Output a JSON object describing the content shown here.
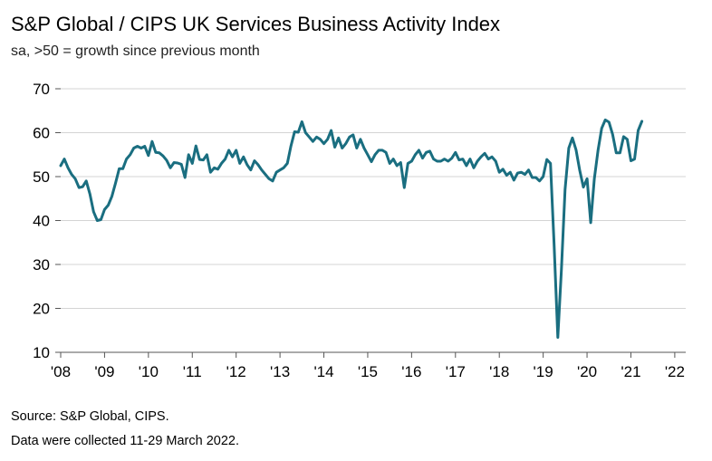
{
  "title": "S&P Global / CIPS UK Services Business Activity Index",
  "subtitle": "sa, >50 = growth since previous month",
  "source": "Source: S&P Global, CIPS.",
  "note": "Data were collected 11-29 March 2022.",
  "colors": {
    "line": "#1a6e80",
    "grid": "#d4d4d4",
    "axis": "#555555"
  },
  "chart_data": {
    "type": "line",
    "title": "S&P Global / CIPS UK Services Business Activity Index",
    "xlabel": "",
    "ylabel": "",
    "ylim": [
      10,
      70
    ],
    "xlim": [
      2008.0,
      2022.25
    ],
    "grid": true,
    "yticks": [
      10,
      20,
      30,
      40,
      50,
      60,
      70
    ],
    "xticks": [
      {
        "label": "'08",
        "x": 2008.0
      },
      {
        "label": "'09",
        "x": 2009.0
      },
      {
        "label": "'10",
        "x": 2010.0
      },
      {
        "label": "'11",
        "x": 2011.0
      },
      {
        "label": "'12",
        "x": 2012.0
      },
      {
        "label": "'13",
        "x": 2013.0
      },
      {
        "label": "'14",
        "x": 2014.0
      },
      {
        "label": "'15",
        "x": 2015.0
      },
      {
        "label": "'16",
        "x": 2016.0
      },
      {
        "label": "'17",
        "x": 2017.0
      },
      {
        "label": "'18",
        "x": 2018.0
      },
      {
        "label": "'19",
        "x": 2019.0
      },
      {
        "label": "'20",
        "x": 2020.0
      },
      {
        "label": "'21",
        "x": 2021.0
      },
      {
        "label": "'22",
        "x": 2022.0
      }
    ],
    "series": [
      {
        "name": "UK Services Business Activity Index",
        "start": 2008.0,
        "step": 0.083333,
        "values": [
          52.5,
          54.0,
          52.0,
          50.5,
          49.5,
          47.5,
          47.7,
          49.0,
          46.0,
          42.0,
          40.0,
          40.2,
          42.5,
          43.5,
          45.5,
          48.5,
          51.8,
          51.8,
          54.0,
          55.0,
          56.5,
          56.9,
          56.5,
          56.9,
          54.8,
          58.0,
          55.5,
          55.4,
          54.7,
          53.7,
          52.0,
          53.2,
          53.1,
          52.8,
          49.8,
          55.0,
          53.0,
          57.0,
          53.9,
          53.8,
          55.0,
          51.0,
          52.0,
          51.7,
          53.0,
          54.0,
          56.0,
          54.5,
          56.0,
          53.0,
          54.5,
          52.7,
          51.5,
          53.6,
          52.7,
          51.5,
          50.5,
          49.5,
          49.0,
          51.0,
          51.5,
          52.0,
          53.0,
          57.0,
          60.2,
          60.1,
          62.5,
          60.0,
          59.0,
          58.0,
          59.0,
          58.5,
          57.5,
          58.5,
          60.5,
          56.7,
          58.8,
          56.5,
          57.5,
          59.0,
          59.5,
          56.5,
          58.5,
          56.5,
          55.0,
          53.4,
          55.0,
          56.0,
          56.0,
          55.5,
          53.0,
          54.0,
          52.5,
          53.2,
          47.5,
          53.0,
          53.5,
          55.0,
          56.0,
          54.2,
          55.5,
          55.8,
          54.0,
          53.5,
          53.5,
          54.0,
          53.5,
          54.2,
          55.5,
          53.8,
          54.0,
          52.5,
          54.0,
          52.0,
          53.5,
          54.5,
          55.3,
          54.0,
          54.5,
          53.5,
          51.0,
          51.7,
          50.3,
          51.0,
          49.2,
          50.8,
          51.0,
          50.5,
          51.5,
          49.8,
          49.8,
          49.0,
          50.0,
          53.9,
          53.0,
          34.5,
          13.4,
          29.0,
          47.1,
          56.5,
          58.8,
          56.1,
          51.4,
          47.6,
          49.5,
          39.5,
          49.5,
          56.0,
          61.0,
          62.9,
          62.4,
          59.6,
          55.4,
          55.4,
          59.1,
          58.5,
          53.6,
          54.0,
          60.5,
          62.6
        ]
      }
    ]
  }
}
